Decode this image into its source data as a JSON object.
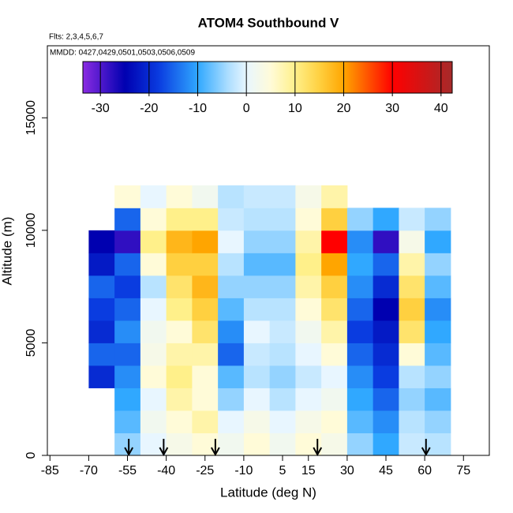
{
  "chart_data": {
    "type": "heatmap",
    "title": "ATOM4 Southbound V",
    "subtitle": "Flts: 2,3,4,5,6,7",
    "annotation": "MMDD: 0427,0429,0501,0503,0506,0509",
    "x_label": "Latitude (deg N)",
    "y_label": "Altitude (m)",
    "xlim": [
      -86,
      85
    ],
    "ylim": [
      0,
      18200
    ],
    "xticks": [
      -85,
      -70,
      -55,
      -40,
      -25,
      -10,
      5,
      15,
      30,
      45,
      60,
      75
    ],
    "yticks": [
      0,
      5000,
      10000,
      15000
    ],
    "x_bins": [
      -70,
      -60,
      -50,
      -40,
      -30,
      -20,
      -10,
      0,
      10,
      20,
      30,
      40,
      50,
      60,
      70
    ],
    "y_bins": [
      0,
      1000,
      2000,
      3000,
      4000,
      5000,
      6000,
      7000,
      8000,
      9000,
      10000,
      11000,
      12000
    ],
    "values": [
      [
        null,
        -5,
        0,
        3,
        5,
        2,
        5,
        2,
        5,
        3,
        -5,
        -10,
        -2,
        -3
      ],
      [
        null,
        -8,
        2,
        5,
        8,
        0,
        3,
        0,
        3,
        5,
        -8,
        -12,
        -3,
        -5
      ],
      [
        null,
        -10,
        0,
        8,
        5,
        -5,
        0,
        -3,
        0,
        2,
        -10,
        -15,
        -5,
        -8
      ],
      [
        -20,
        -12,
        5,
        10,
        5,
        -8,
        -3,
        -5,
        -2,
        0,
        -12,
        -18,
        -3,
        -5
      ],
      [
        -15,
        -15,
        3,
        8,
        8,
        -15,
        -2,
        -3,
        0,
        5,
        -15,
        -20,
        5,
        -8
      ],
      [
        -20,
        -12,
        2,
        5,
        12,
        -12,
        0,
        -2,
        2,
        8,
        -18,
        -22,
        12,
        -10
      ],
      [
        -18,
        -15,
        0,
        10,
        15,
        -8,
        -3,
        -3,
        5,
        12,
        -15,
        -25,
        15,
        -12
      ],
      [
        -15,
        -18,
        -3,
        12,
        18,
        -5,
        -5,
        -5,
        8,
        15,
        -12,
        -20,
        12,
        -8
      ],
      [
        -22,
        -15,
        5,
        15,
        15,
        -3,
        -8,
        -8,
        10,
        20,
        -10,
        -15,
        8,
        -5
      ],
      [
        -25,
        -28,
        10,
        18,
        20,
        0,
        -5,
        -5,
        8,
        30,
        -12,
        -28,
        3,
        -10
      ],
      [
        null,
        -15,
        5,
        10,
        10,
        -2,
        -3,
        -3,
        5,
        15,
        -5,
        -10,
        -2,
        -5
      ],
      [
        null,
        5,
        0,
        5,
        2,
        -3,
        -2,
        -2,
        3,
        8,
        null,
        null,
        null,
        null
      ]
    ],
    "colorbar_lim": [
      -33.6,
      42.3
    ],
    "colorbar_ticks": [
      -30,
      -20,
      -10,
      0,
      10,
      20,
      30,
      40
    ],
    "colorscale": [
      {
        "value": -33.6,
        "color": "#8a2be2"
      },
      {
        "value": -25,
        "color": "#0000b0"
      },
      {
        "value": -18,
        "color": "#0a3ce0"
      },
      {
        "value": -10,
        "color": "#30a8ff"
      },
      {
        "value": -4,
        "color": "#a8dcff"
      },
      {
        "value": 0,
        "color": "#e8f6ff"
      },
      {
        "value": 5,
        "color": "#fffbd8"
      },
      {
        "value": 10,
        "color": "#fff08a"
      },
      {
        "value": 15,
        "color": "#ffd040"
      },
      {
        "value": 20,
        "color": "#ffa500"
      },
      {
        "value": 30,
        "color": "#ff0000"
      },
      {
        "value": 42.3,
        "color": "#a52a2a"
      }
    ],
    "arrows_x": [
      -54.5,
      -41,
      -21,
      18.5,
      60.5
    ]
  }
}
